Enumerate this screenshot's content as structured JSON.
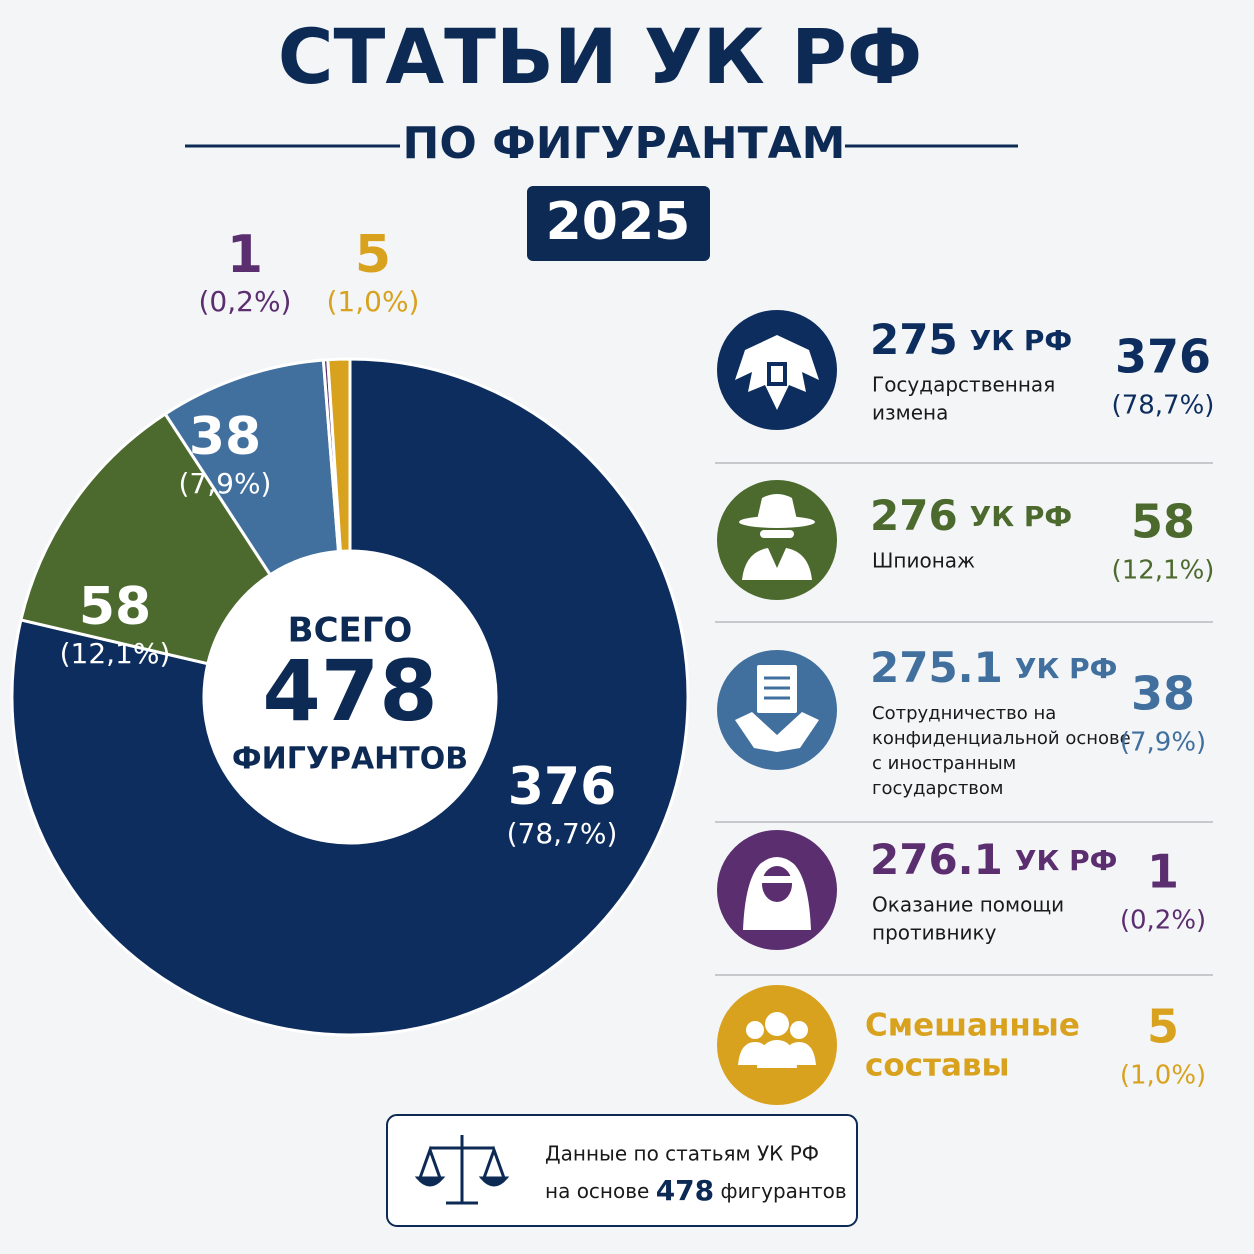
{
  "chart_data": {
    "type": "donut",
    "title": "СТАТЬИ УК РФ",
    "subtitle": "ПО ФИГУРАНТАМ",
    "year": "2025",
    "center_top": "ВСЕГО",
    "total": 478,
    "center_bottom": "ФИГУРАНТОВ",
    "categories": [
      "275 УК РФ",
      "276 УК РФ",
      "275.1 УК РФ",
      "276.1 УК РФ",
      "Смешанные составы"
    ],
    "values": [
      376,
      58,
      38,
      1,
      5
    ],
    "shares": [
      78.7,
      12.1,
      7.9,
      0.2,
      1.0
    ],
    "share_labels": [
      "(78,7%)",
      "(12,1%)",
      "(7,9%)",
      "(0,2%)",
      "(1,0%)"
    ],
    "colors": [
      "#0c2d5e",
      "#4c6a2e",
      "#41709f",
      "#5b2e70",
      "#d9a21e"
    ],
    "legend": [
      {
        "code": "275",
        "suffix": "УК РФ",
        "description": [
          "Государственная",
          "измена"
        ]
      },
      {
        "code": "276",
        "suffix": "УК РФ",
        "description": [
          "Шпионаж"
        ]
      },
      {
        "code": "275.1",
        "suffix": "УК РФ",
        "description": [
          "Сотрудничество на",
          "конфиденциальной основе",
          "с иностранным",
          "государством"
        ]
      },
      {
        "code": "276.1",
        "suffix": "УК РФ",
        "description": [
          "Оказание помощи",
          "противнику"
        ]
      },
      {
        "name": [
          "Смешанные",
          "составы"
        ]
      }
    ]
  },
  "footer": {
    "line1": "Данные по статьям УК РФ",
    "line2_before": "на основе",
    "line2_number": 478,
    "line2_after": "фигурантов"
  }
}
